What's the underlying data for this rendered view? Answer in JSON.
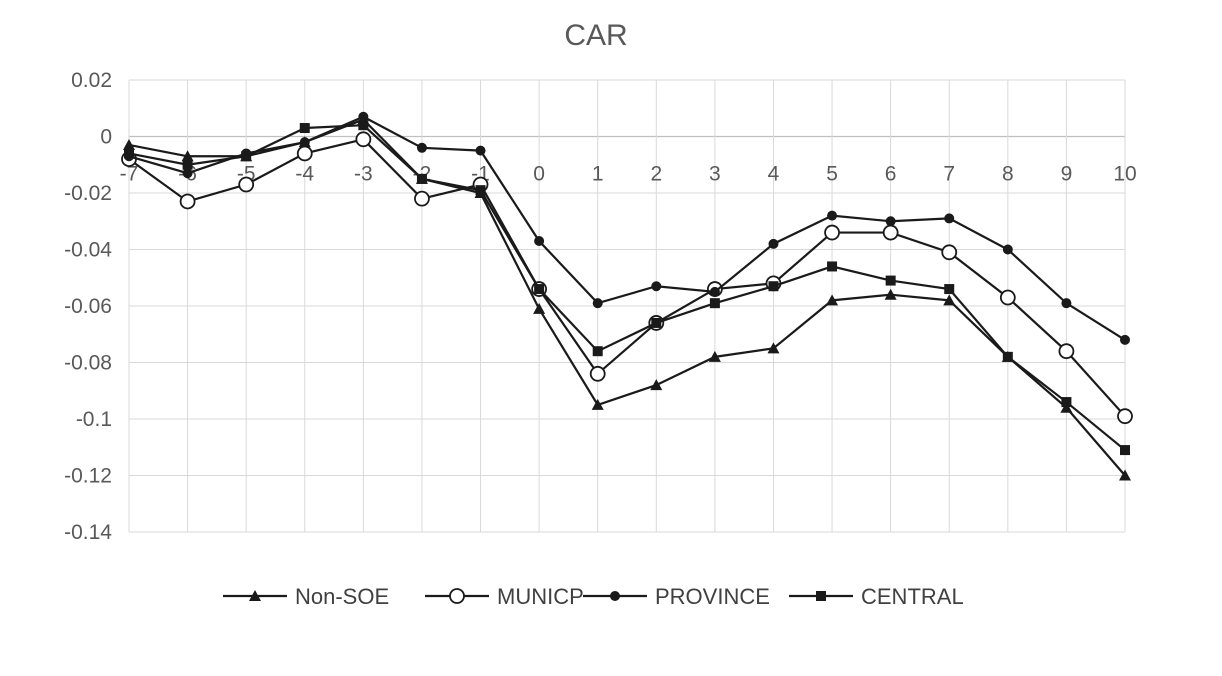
{
  "chart_data": {
    "type": "line",
    "title": "CAR",
    "xlabel": "",
    "ylabel": "",
    "x": [
      -7,
      -6,
      -5,
      -4,
      -3,
      -2,
      -1,
      0,
      1,
      2,
      3,
      4,
      5,
      6,
      7,
      8,
      9,
      10
    ],
    "x_tick_labels": [
      "-7",
      "-6",
      "-5",
      "-4",
      "-3",
      "-2",
      "-1",
      "0",
      "1",
      "2",
      "3",
      "4",
      "5",
      "6",
      "7",
      "8",
      "9",
      "10"
    ],
    "ylim": [
      -0.14,
      0.02
    ],
    "y_ticks": [
      0.02,
      0,
      -0.02,
      -0.04,
      -0.06,
      -0.08,
      -0.1,
      -0.12,
      -0.14
    ],
    "y_tick_labels": [
      "0.02",
      "0",
      "-0.02",
      "-0.04",
      "-0.06",
      "-0.08",
      "-0.1",
      "-0.12",
      "-0.14"
    ],
    "grid": true,
    "legend_position": "bottom",
    "series": [
      {
        "name": "Non-SOE",
        "marker": "triangle",
        "color": "#1a1a1a",
        "values": [
          -0.003,
          -0.007,
          -0.007,
          -0.002,
          0.006,
          -0.015,
          -0.02,
          -0.061,
          -0.095,
          -0.088,
          -0.078,
          -0.075,
          -0.058,
          -0.056,
          -0.058,
          -0.078,
          -0.096,
          -0.12
        ]
      },
      {
        "name": "MUNICP",
        "marker": "open-circle",
        "color": "#1a1a1a",
        "values": [
          -0.008,
          -0.023,
          -0.017,
          -0.006,
          -0.001,
          -0.022,
          -0.017,
          -0.054,
          -0.084,
          -0.066,
          -0.054,
          -0.052,
          -0.034,
          -0.034,
          -0.041,
          -0.057,
          -0.076,
          -0.099
        ]
      },
      {
        "name": "PROVINCE",
        "marker": "filled-circle",
        "color": "#1a1a1a",
        "values": [
          -0.007,
          -0.013,
          -0.006,
          -0.002,
          0.007,
          -0.004,
          -0.005,
          -0.037,
          -0.059,
          -0.053,
          -0.055,
          -0.038,
          -0.028,
          -0.03,
          -0.029,
          -0.04,
          -0.059,
          -0.072
        ]
      },
      {
        "name": "CENTRAL",
        "marker": "square",
        "color": "#1a1a1a",
        "values": [
          -0.006,
          -0.01,
          -0.007,
          0.003,
          0.004,
          -0.015,
          -0.019,
          -0.054,
          -0.076,
          -0.066,
          -0.059,
          -0.053,
          -0.046,
          -0.051,
          -0.054,
          -0.078,
          -0.094,
          -0.111
        ]
      }
    ]
  }
}
